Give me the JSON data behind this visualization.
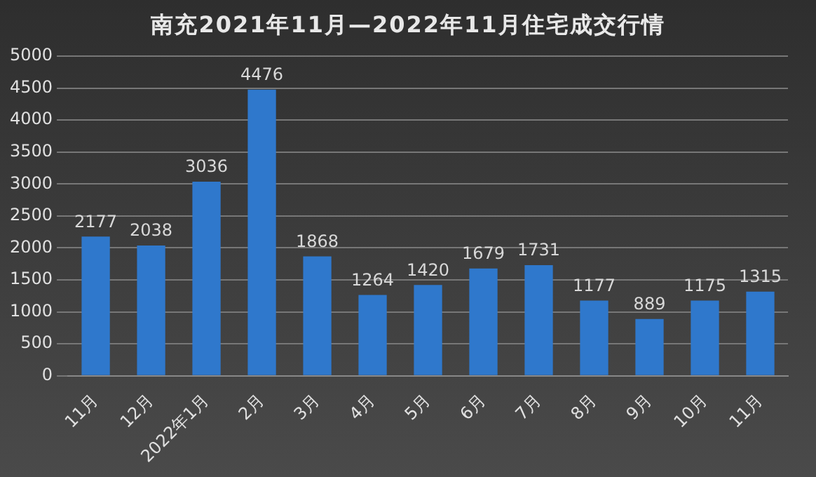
{
  "chart_data": {
    "type": "bar",
    "title": "南充2021年11月—2022年11月住宅成交行情",
    "categories": [
      "11月",
      "12月",
      "2022年1月",
      "2月",
      "3月",
      "4月",
      "5月",
      "6月",
      "7月",
      "8月",
      "9月",
      "10月",
      "11月"
    ],
    "values": [
      2177,
      2038,
      3036,
      4476,
      1868,
      1264,
      1420,
      1679,
      1731,
      1177,
      889,
      1175,
      1315
    ],
    "color": "#2f78cc",
    "ylim": [
      0,
      5000
    ],
    "yticks": [
      0,
      500,
      1000,
      1500,
      2000,
      2500,
      3000,
      3500,
      4000,
      4500,
      5000
    ],
    "grid": "y",
    "data_labels": true,
    "legend": false
  }
}
